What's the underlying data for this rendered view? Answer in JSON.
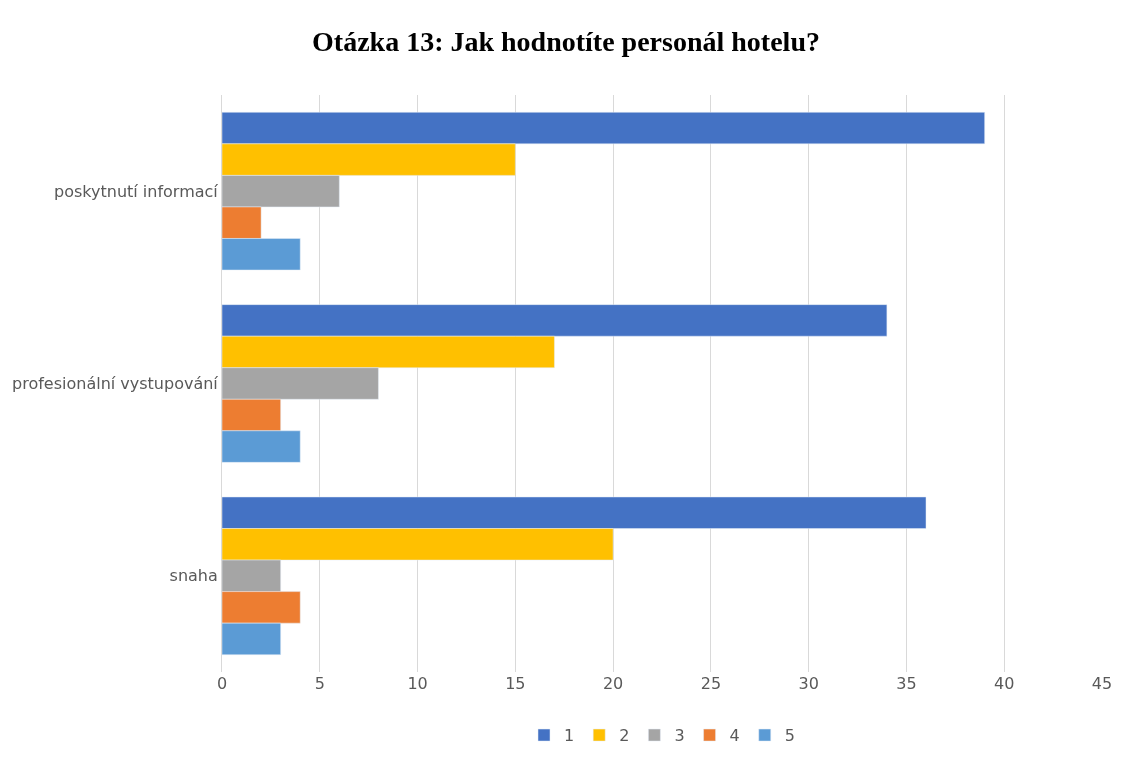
{
  "chart_data": {
    "type": "bar",
    "title": "Otázka 13: Jak hodnotíte personál hotelu?",
    "orientation": "horizontal",
    "categories": [
      "poskytnutí informací",
      "profesionální vystupování",
      "snaha"
    ],
    "series": [
      {
        "name": "1",
        "color": "#4472c4",
        "values": [
          39,
          34,
          36
        ]
      },
      {
        "name": "2",
        "color": "#ffc000",
        "values": [
          15,
          17,
          20
        ]
      },
      {
        "name": "3",
        "color": "#a5a5a5",
        "values": [
          6,
          8,
          3
        ]
      },
      {
        "name": "4",
        "color": "#ed7d31",
        "values": [
          2,
          3,
          4
        ]
      },
      {
        "name": "5",
        "color": "#5b9bd5",
        "values": [
          4,
          4,
          3
        ]
      }
    ],
    "xlim": [
      0,
      45
    ],
    "xticks": [
      0,
      5,
      10,
      15,
      20,
      25,
      30,
      35,
      40,
      45
    ],
    "grid": "x",
    "legend": "bottom"
  }
}
